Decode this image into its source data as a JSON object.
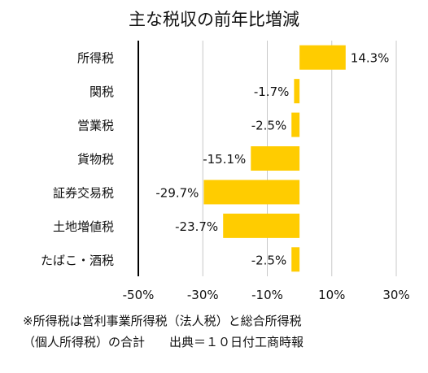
{
  "chart_data": {
    "type": "bar",
    "orientation": "horizontal",
    "title": "主な税収の前年比増減",
    "categories": [
      "所得税",
      "関税",
      "営業税",
      "貨物税",
      "証券交易税",
      "土地増値税",
      "たばこ・酒税"
    ],
    "values": [
      14.3,
      -1.7,
      -2.5,
      -15.1,
      -29.7,
      -23.7,
      -2.5
    ],
    "value_labels": [
      "14.3%",
      "-1.7%",
      "-2.5%",
      "-15.1%",
      "-29.7%",
      "-23.7%",
      "-2.5%"
    ],
    "xlim": [
      -50,
      30
    ],
    "xticks": [
      -50,
      -30,
      -10,
      10,
      30
    ],
    "xtick_labels": [
      "-50%",
      "-30%",
      "-10%",
      "10%",
      "30%"
    ],
    "grid": true,
    "bar_color": "#FFCC00",
    "grid_color": "#c8c8c8",
    "axis_color": "#000000"
  },
  "footnote": {
    "line1": "※所得税は営利事業所得税（法人税）と総合所得税",
    "line2": "（個人所得税）の合計　　出典＝１０日付工商時報"
  }
}
